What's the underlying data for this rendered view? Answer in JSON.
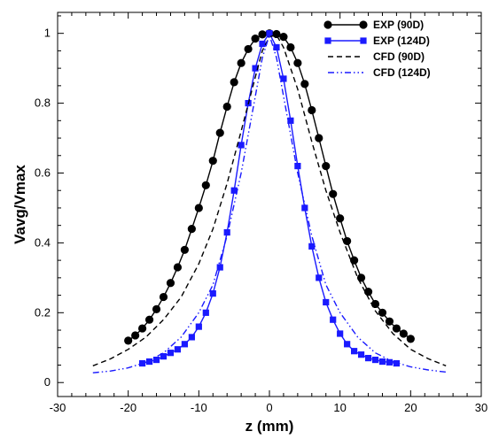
{
  "chart_data": {
    "type": "line",
    "xlabel": "z (mm)",
    "ylabel": "Vavg/Vmax",
    "xlim": [
      -30,
      30
    ],
    "ylim": [
      -0.04,
      1.06
    ],
    "xticks": [
      -30,
      -20,
      -10,
      0,
      10,
      20,
      30
    ],
    "yticks": [
      0,
      0.2,
      0.4,
      0.6,
      0.8,
      1
    ],
    "ytick_labels": [
      "0",
      "0.2",
      "0.4",
      "0.6",
      "0.8",
      "1"
    ],
    "grid": false,
    "legend_position": "top-right",
    "series": [
      {
        "name": "EXP (90D)",
        "color": "#000000",
        "line": "solid",
        "marker": "circle",
        "x": [
          -20,
          -19,
          -18,
          -17,
          -16,
          -15,
          -14,
          -13,
          -12,
          -11,
          -10,
          -9,
          -8,
          -7,
          -6,
          -5,
          -4,
          -3,
          -2,
          -1,
          0,
          1,
          2,
          3,
          4,
          5,
          6,
          7,
          8,
          9,
          10,
          11,
          12,
          13,
          14,
          15,
          16,
          17,
          18,
          19,
          20
        ],
        "y": [
          0.12,
          0.135,
          0.155,
          0.18,
          0.21,
          0.245,
          0.285,
          0.33,
          0.38,
          0.44,
          0.5,
          0.565,
          0.635,
          0.715,
          0.79,
          0.86,
          0.915,
          0.955,
          0.985,
          0.997,
          1.0,
          0.998,
          0.99,
          0.96,
          0.915,
          0.855,
          0.78,
          0.7,
          0.62,
          0.54,
          0.47,
          0.405,
          0.35,
          0.3,
          0.26,
          0.225,
          0.2,
          0.175,
          0.155,
          0.14,
          0.125
        ]
      },
      {
        "name": "EXP (124D)",
        "color": "#1a1aff",
        "line": "solid",
        "marker": "square",
        "x": [
          -18,
          -17,
          -16,
          -15,
          -14,
          -13,
          -12,
          -11,
          -10,
          -9,
          -8,
          -7,
          -6,
          -5,
          -4,
          -3,
          -2,
          -1,
          0,
          1,
          2,
          3,
          4,
          5,
          6,
          7,
          8,
          9,
          10,
          11,
          12,
          13,
          14,
          15,
          16,
          17,
          18
        ],
        "y": [
          0.055,
          0.06,
          0.065,
          0.075,
          0.085,
          0.095,
          0.11,
          0.13,
          0.16,
          0.2,
          0.255,
          0.33,
          0.43,
          0.55,
          0.68,
          0.8,
          0.9,
          0.97,
          1.0,
          0.96,
          0.87,
          0.75,
          0.62,
          0.5,
          0.39,
          0.3,
          0.23,
          0.18,
          0.14,
          0.11,
          0.09,
          0.08,
          0.07,
          0.065,
          0.06,
          0.058,
          0.055
        ]
      },
      {
        "name": "CFD (90D)",
        "color": "#000000",
        "line": "dashed",
        "marker": "none",
        "x": [
          -25,
          -22.5,
          -20,
          -17.5,
          -15,
          -12.5,
          -10,
          -8,
          -6,
          -4,
          -2,
          -1,
          0,
          1,
          2,
          4,
          6,
          8,
          10,
          12.5,
          15,
          17.5,
          20,
          22.5,
          25
        ],
        "y": [
          0.048,
          0.068,
          0.095,
          0.13,
          0.18,
          0.245,
          0.34,
          0.44,
          0.57,
          0.72,
          0.875,
          0.95,
          0.99,
          0.995,
          0.96,
          0.84,
          0.69,
          0.55,
          0.43,
          0.3,
          0.205,
          0.14,
          0.095,
          0.068,
          0.048
        ]
      },
      {
        "name": "CFD (124D)",
        "color": "#1a1aff",
        "line": "dashdotdot",
        "marker": "none",
        "x": [
          -25,
          -22.5,
          -20,
          -17.5,
          -15,
          -12.5,
          -10,
          -8,
          -6,
          -4,
          -2,
          -1,
          0,
          1,
          2,
          4,
          6,
          8,
          10,
          12.5,
          15,
          17.5,
          20,
          22.5,
          25
        ],
        "y": [
          0.028,
          0.033,
          0.042,
          0.058,
          0.085,
          0.13,
          0.2,
          0.28,
          0.42,
          0.6,
          0.82,
          0.93,
          0.995,
          0.93,
          0.82,
          0.6,
          0.42,
          0.28,
          0.2,
          0.13,
          0.085,
          0.06,
          0.045,
          0.036,
          0.03
        ]
      }
    ]
  }
}
